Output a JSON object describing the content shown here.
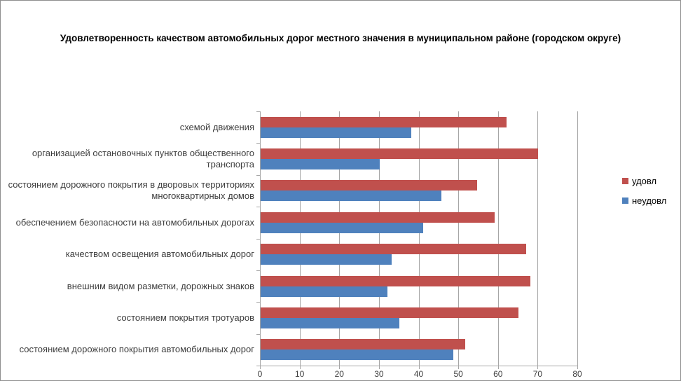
{
  "window": {
    "background": "#ffffff",
    "border_color": "#8f8f8f"
  },
  "chart_data": {
    "type": "bar",
    "orientation": "horizontal",
    "title": "Удовлетворенность качеством автомобильных дорог местного значения в муниципальном районе (городском округе)",
    "categories": [
      "схемой движения",
      "организацией остановочных пунктов общественного транспорта",
      "состоянием дорожного покрытия  в дворовых территориях многоквартирных домов",
      "обеспечением  безопасности на автомобильных дорогах",
      "качеством освещения  автомобильных дорог",
      "внешним  видом разметки, дорожных знаков",
      "состоянием покрытия тротуаров",
      "состоянием дорожного покрытия автомобильных дорог"
    ],
    "series": [
      {
        "name": "удовл",
        "color": "#C0504D",
        "values": [
          62,
          70,
          54.5,
          59,
          67,
          68,
          65,
          51.5
        ]
      },
      {
        "name": "неудовл",
        "color": "#4F81BD",
        "values": [
          38,
          30,
          45.5,
          41,
          33,
          32,
          35,
          48.5
        ]
      }
    ],
    "xlim": [
      0,
      80
    ],
    "x_ticks": [
      0,
      10,
      20,
      30,
      40,
      50,
      60,
      70,
      80
    ],
    "grid": true,
    "gridline_color": "#a6a6a6",
    "legend_position": "right"
  }
}
